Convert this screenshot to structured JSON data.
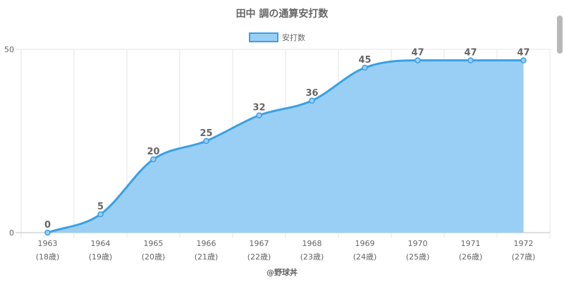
{
  "chart_data": {
    "type": "area",
    "title": "田中 調の通算安打数",
    "legend": {
      "label": "安打数",
      "position": "top"
    },
    "categories": [
      "1963",
      "1964",
      "1965",
      "1966",
      "1967",
      "1968",
      "1969",
      "1970",
      "1971",
      "1972"
    ],
    "category_sublabels": [
      "(18歳)",
      "(19歳)",
      "(20歳)",
      "(21歳)",
      "(22歳)",
      "(23歳)",
      "(24歳)",
      "(25歳)",
      "(26歳)",
      "(27歳)"
    ],
    "series": [
      {
        "name": "安打数",
        "values": [
          0,
          5,
          20,
          25,
          32,
          36,
          45,
          47,
          47,
          47
        ]
      }
    ],
    "ylim": [
      0,
      50
    ],
    "yticks": [
      "0",
      "50"
    ],
    "grid": true,
    "colors": {
      "line": "#3aa0e6",
      "fill": "#9acff5",
      "grid": "#e6e6e6"
    }
  },
  "credit": "@野球丼"
}
